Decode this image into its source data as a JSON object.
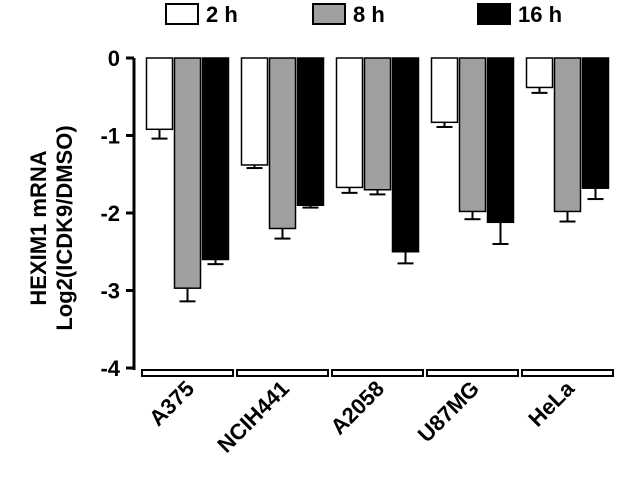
{
  "chart_data": {
    "type": "bar",
    "categories": [
      "A375",
      "NCIH441",
      "A2058",
      "U87MG",
      "HeLa"
    ],
    "series": [
      {
        "name": "2 h",
        "color": "#ffffff",
        "values": [
          -0.92,
          -1.38,
          -1.67,
          -0.83,
          -0.38
        ],
        "errors": [
          0.12,
          0.04,
          0.07,
          0.06,
          0.07
        ]
      },
      {
        "name": "8 h",
        "color": "#a0a0a0",
        "values": [
          -2.97,
          -2.2,
          -1.7,
          -1.98,
          -1.98
        ],
        "errors": [
          0.17,
          0.13,
          0.06,
          0.1,
          0.13
        ]
      },
      {
        "name": "16 h",
        "color": "#000000",
        "values": [
          -2.6,
          -1.9,
          -2.5,
          -2.12,
          -1.68
        ],
        "errors": [
          0.06,
          0.03,
          0.15,
          0.28,
          0.14
        ]
      }
    ],
    "ylabel_line1": "HEXIM1 mRNA",
    "ylabel_line2": "Log2(ICDK9/DMSO)",
    "ylim": [
      -4,
      0
    ],
    "yticks": [
      "0",
      "-1",
      "-2",
      "-3",
      "-4"
    ],
    "grid": false,
    "legend_position": "top"
  }
}
